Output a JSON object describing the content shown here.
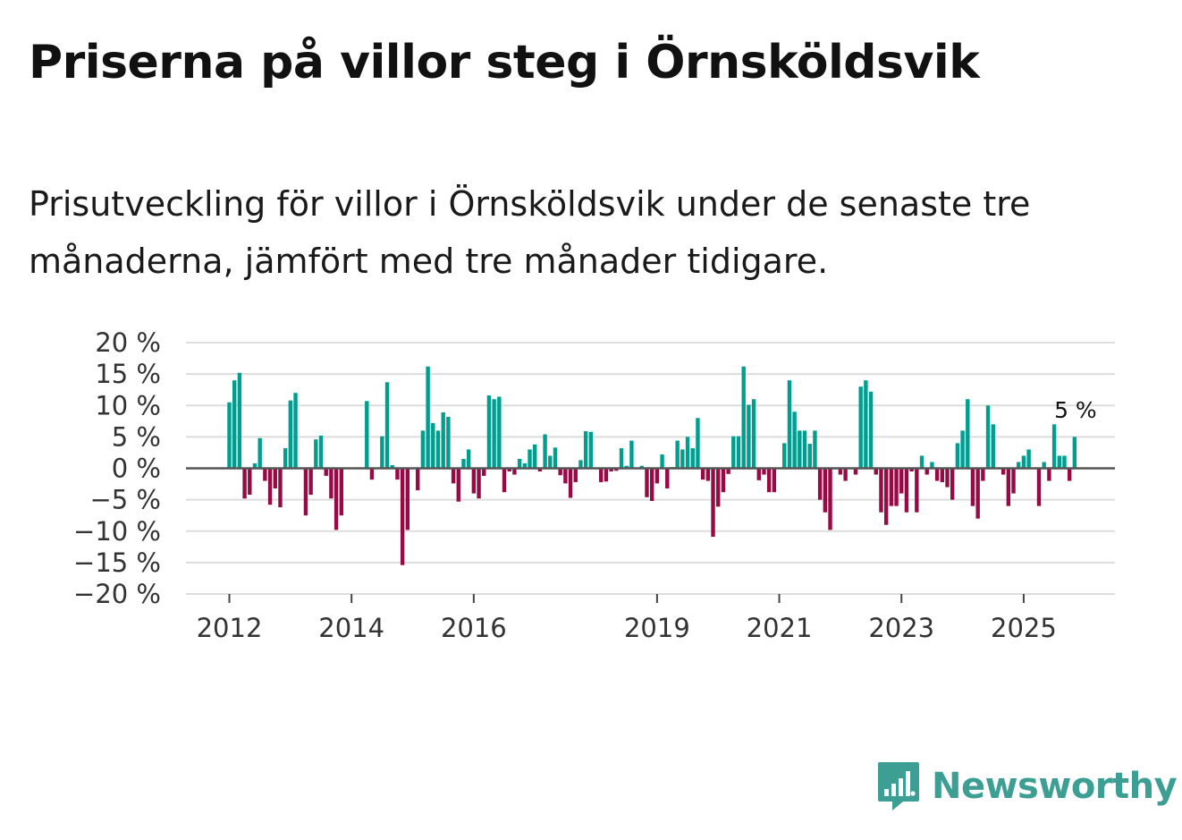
{
  "title": "Priserna på villor steg i Örnsköldsvik",
  "subtitle": "Prisutveckling för villor i Örnsköldsvik under de senaste tre månaderna, jämfört med tre månader tidigare.",
  "brand": "Newsworthy",
  "colors": {
    "positive": "#009e8f",
    "negative": "#980a46",
    "grid": "#dddddd",
    "zero": "#555555",
    "brand": "#3d9e94"
  },
  "chart_data": {
    "type": "bar",
    "title": "Priserna på villor steg i Örnsköldsvik",
    "xlabel": "",
    "ylabel": "",
    "ylim": [
      -20,
      20
    ],
    "yticks": [
      20,
      15,
      10,
      5,
      0,
      -5,
      -10,
      -15,
      -20
    ],
    "ytick_labels": [
      "20 %",
      "15 %",
      "10 %",
      "5 %",
      "0 %",
      "−5 %",
      "−10 %",
      "−15 %",
      "−20 %"
    ],
    "xticks": [
      {
        "label": "2012",
        "year": 2012
      },
      {
        "label": "2014",
        "year": 2014
      },
      {
        "label": "2016",
        "year": 2016
      },
      {
        "label": "2019",
        "year": 2019
      },
      {
        "label": "2021",
        "year": 2021
      },
      {
        "label": "2023",
        "year": 2023
      },
      {
        "label": "2025",
        "year": 2025
      }
    ],
    "start": {
      "year": 2012,
      "month": 1
    },
    "annotation": {
      "label": "5 %",
      "value": 5
    },
    "values": [
      10.5,
      14,
      15.2,
      -4.8,
      -4.2,
      0.8,
      4.8,
      -2,
      -5.8,
      -3.2,
      -6.2,
      3.2,
      10.8,
      12,
      null,
      -7.5,
      -4.2,
      4.6,
      5.2,
      -1.2,
      -4.8,
      -9.8,
      -7.5,
      null,
      null,
      null,
      null,
      10.7,
      -1.8,
      null,
      5.1,
      13.7,
      0.5,
      -1.8,
      -15.4,
      -9.8,
      null,
      -3.5,
      6,
      16.2,
      7.2,
      6,
      8.9,
      8.2,
      -2.4,
      -5.3,
      1.5,
      3,
      -4,
      -4.8,
      -1.2,
      11.6,
      11,
      11.4,
      -3.8,
      -0.5,
      -1,
      1.5,
      0.8,
      3,
      3.8,
      -0.5,
      5.4,
      2,
      3.3,
      -1.1,
      -2.4,
      -4.7,
      -2.2,
      1.3,
      5.9,
      5.8,
      null,
      -2.2,
      -2.1,
      -0.5,
      -0.4,
      3.2,
      0.4,
      4.4,
      null,
      0.4,
      -4.6,
      -5.2,
      -2.4,
      2.2,
      -3.2,
      0.2,
      4.4,
      3,
      5,
      3.2,
      8,
      -1.8,
      -2,
      -10.9,
      -6.1,
      -3.8,
      -0.9,
      5.1,
      5.1,
      16.2,
      10.1,
      11,
      -1.9,
      -1,
      -3.8,
      -3.8,
      null,
      4,
      14,
      9,
      6,
      6,
      3.9,
      6,
      -5,
      -7,
      -9.8,
      null,
      -1,
      -2,
      null,
      -1,
      13,
      14,
      12.2,
      -1,
      -7,
      -9,
      -6,
      -6,
      -4,
      -7,
      -0.5,
      -7,
      2,
      -1,
      1,
      -2,
      -2.2,
      -3,
      -5,
      4,
      6,
      11,
      -6,
      -8,
      -2,
      10,
      7,
      null,
      -1,
      -6,
      -4,
      1,
      2,
      3,
      null,
      -6,
      1,
      -2,
      7,
      2,
      2,
      -2,
      5
    ]
  }
}
